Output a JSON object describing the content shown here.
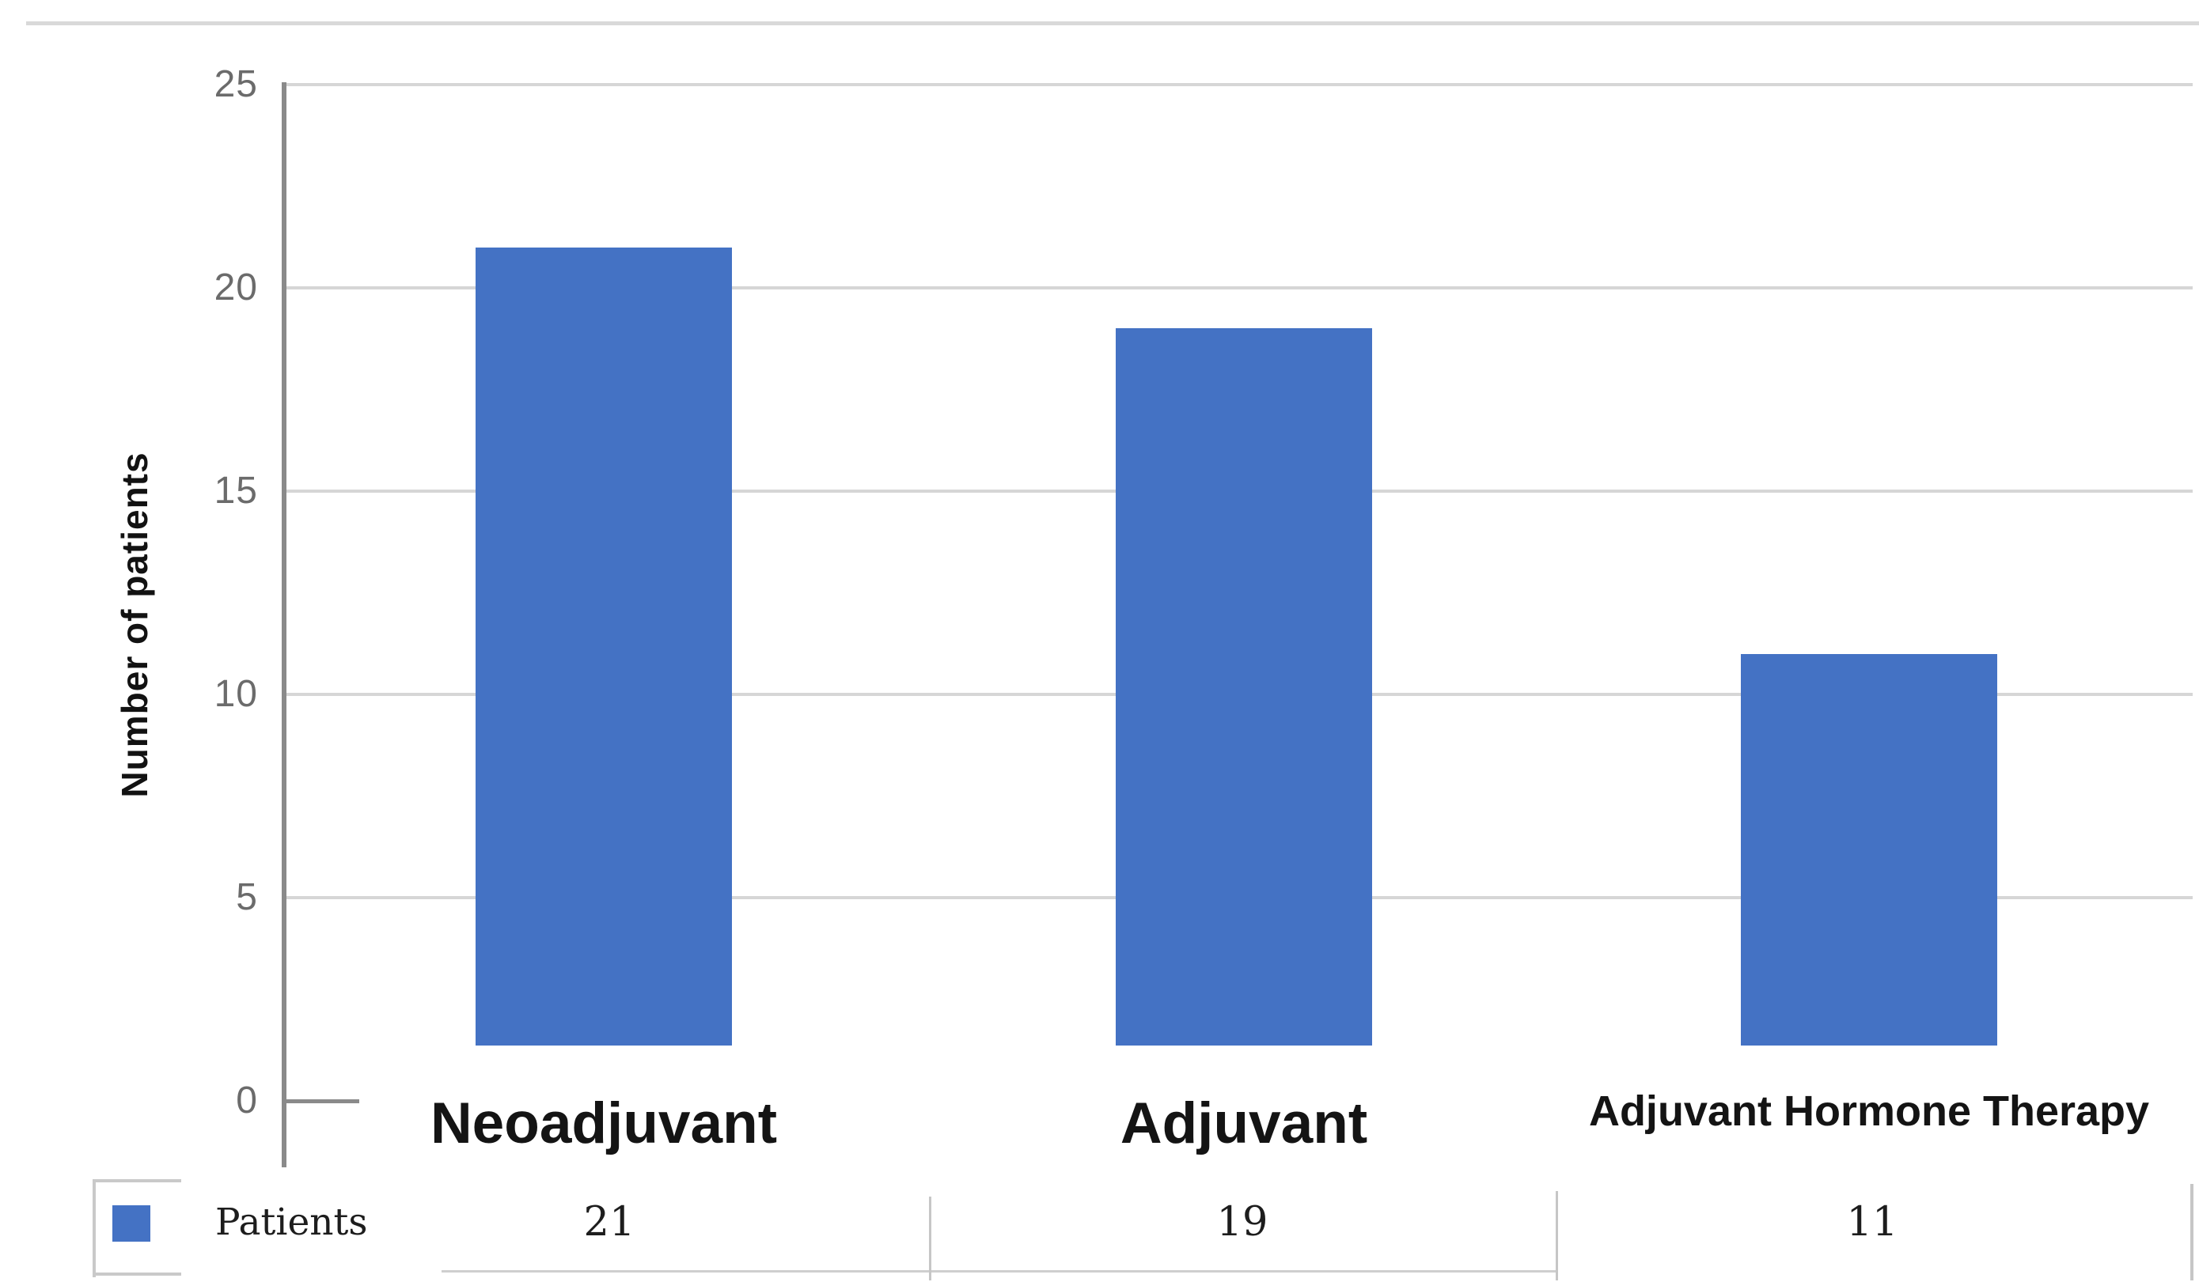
{
  "chart": {
    "ytick_labels": [
      "25",
      "20",
      "15",
      "10",
      "5",
      "0"
    ]
  },
  "chart_data": {
    "type": "bar",
    "title": "",
    "xlabel": "",
    "ylabel": "Number of patients",
    "categories": [
      "Neoadjuvant",
      "Adjuvant",
      "Adjuvant Hormone Therapy"
    ],
    "series": [
      {
        "name": "Patients",
        "values": [
          21,
          19,
          11
        ]
      }
    ],
    "ylim": [
      0,
      25
    ],
    "yticks": [
      0,
      5,
      10,
      15,
      20,
      25
    ],
    "grid": true,
    "bar_color": "#4472C4",
    "gridline_color": "#d6d6d6",
    "axis_color": "#8a8a8a",
    "legend_position": "bottom-table-row"
  }
}
